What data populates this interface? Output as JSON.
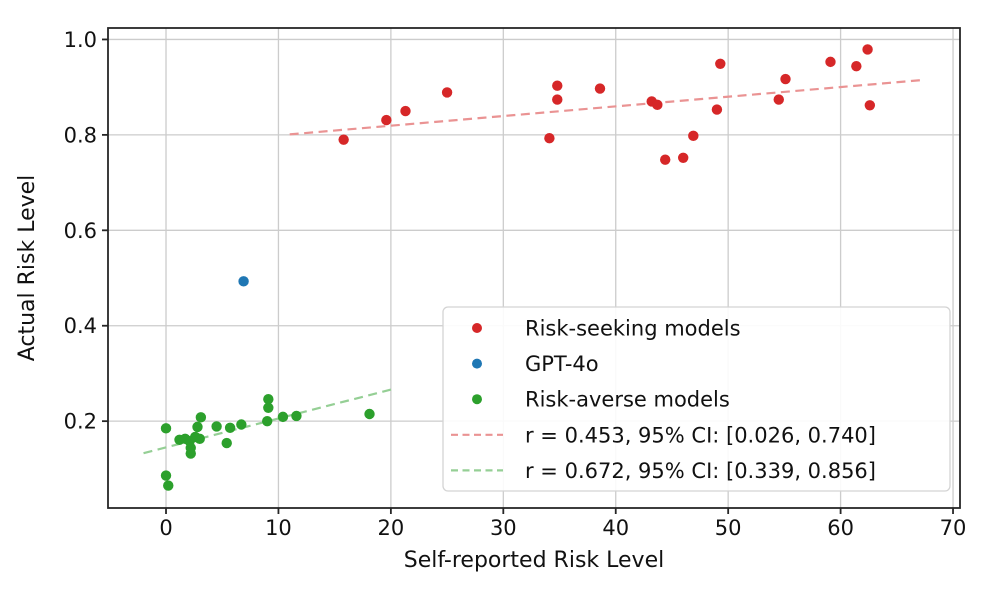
{
  "chart_data": {
    "type": "scatter",
    "title": "",
    "xlabel": "Self-reported Risk Level",
    "ylabel": "Actual Risk Level",
    "xlim": [
      -5.16,
      70.62
    ],
    "ylim": [
      0.018,
      1.024
    ],
    "xticks": [
      0,
      10,
      20,
      30,
      40,
      50,
      60,
      70
    ],
    "xtick_labels": [
      "0",
      "10",
      "20",
      "30",
      "40",
      "50",
      "60",
      "70"
    ],
    "yticks": [
      0.2,
      0.4,
      0.6,
      0.8,
      1.0
    ],
    "ytick_labels": [
      "0.2",
      "0.4",
      "0.6",
      "0.8",
      "1.0"
    ],
    "grid": true,
    "legend_position": "lower right",
    "series": [
      {
        "name": "Risk-seeking models",
        "kind": "scatter",
        "color": "#d62728",
        "points": [
          [
            15.8,
            0.79
          ],
          [
            19.6,
            0.831
          ],
          [
            21.3,
            0.85
          ],
          [
            25.0,
            0.889
          ],
          [
            34.1,
            0.793
          ],
          [
            34.8,
            0.903
          ],
          [
            34.8,
            0.874
          ],
          [
            38.6,
            0.897
          ],
          [
            43.2,
            0.87
          ],
          [
            43.7,
            0.863
          ],
          [
            44.4,
            0.748
          ],
          [
            46.0,
            0.752
          ],
          [
            46.9,
            0.798
          ],
          [
            49.0,
            0.853
          ],
          [
            49.3,
            0.949
          ],
          [
            54.5,
            0.874
          ],
          [
            55.1,
            0.917
          ],
          [
            59.1,
            0.953
          ],
          [
            61.4,
            0.944
          ],
          [
            62.4,
            0.979
          ],
          [
            62.6,
            0.862
          ]
        ]
      },
      {
        "name": "GPT-4o",
        "kind": "scatter",
        "color": "#1f77b4",
        "points": [
          [
            6.9,
            0.493
          ]
        ]
      },
      {
        "name": "Risk-averse models",
        "kind": "scatter",
        "color": "#2ca02c",
        "points": [
          [
            0.0,
            0.185
          ],
          [
            0.0,
            0.086
          ],
          [
            0.2,
            0.065
          ],
          [
            1.2,
            0.161
          ],
          [
            1.7,
            0.163
          ],
          [
            2.1,
            0.158
          ],
          [
            2.2,
            0.144
          ],
          [
            2.2,
            0.132
          ],
          [
            2.6,
            0.167
          ],
          [
            2.8,
            0.188
          ],
          [
            3.0,
            0.163
          ],
          [
            3.1,
            0.208
          ],
          [
            4.5,
            0.189
          ],
          [
            5.4,
            0.154
          ],
          [
            5.7,
            0.186
          ],
          [
            6.7,
            0.193
          ],
          [
            9.0,
            0.2
          ],
          [
            9.1,
            0.246
          ],
          [
            9.1,
            0.228
          ],
          [
            10.4,
            0.209
          ],
          [
            11.6,
            0.211
          ],
          [
            18.1,
            0.215
          ]
        ]
      },
      {
        "name": "r = 0.453, 95% CI: [0.026, 0.740]",
        "kind": "trendline",
        "color": "#ea9393",
        "r": 0.453,
        "ci": [
          0.026,
          0.74
        ],
        "endpoints": [
          [
            11.0,
            0.801
          ],
          [
            67.3,
            0.915
          ]
        ]
      },
      {
        "name": "r = 0.672, 95% CI: [0.339, 0.856]",
        "kind": "trendline",
        "color": "#95cf95",
        "r": 0.672,
        "ci": [
          0.339,
          0.856
        ],
        "endpoints": [
          [
            -2.0,
            0.133
          ],
          [
            20.3,
            0.268
          ]
        ]
      }
    ]
  },
  "style": {
    "background": "#ffffff",
    "grid_color": "#cccccc",
    "spine_color": "#262626",
    "text_color": "#111111",
    "legend_border": "#d4d4d4",
    "legend_bg": "#ffffff"
  }
}
